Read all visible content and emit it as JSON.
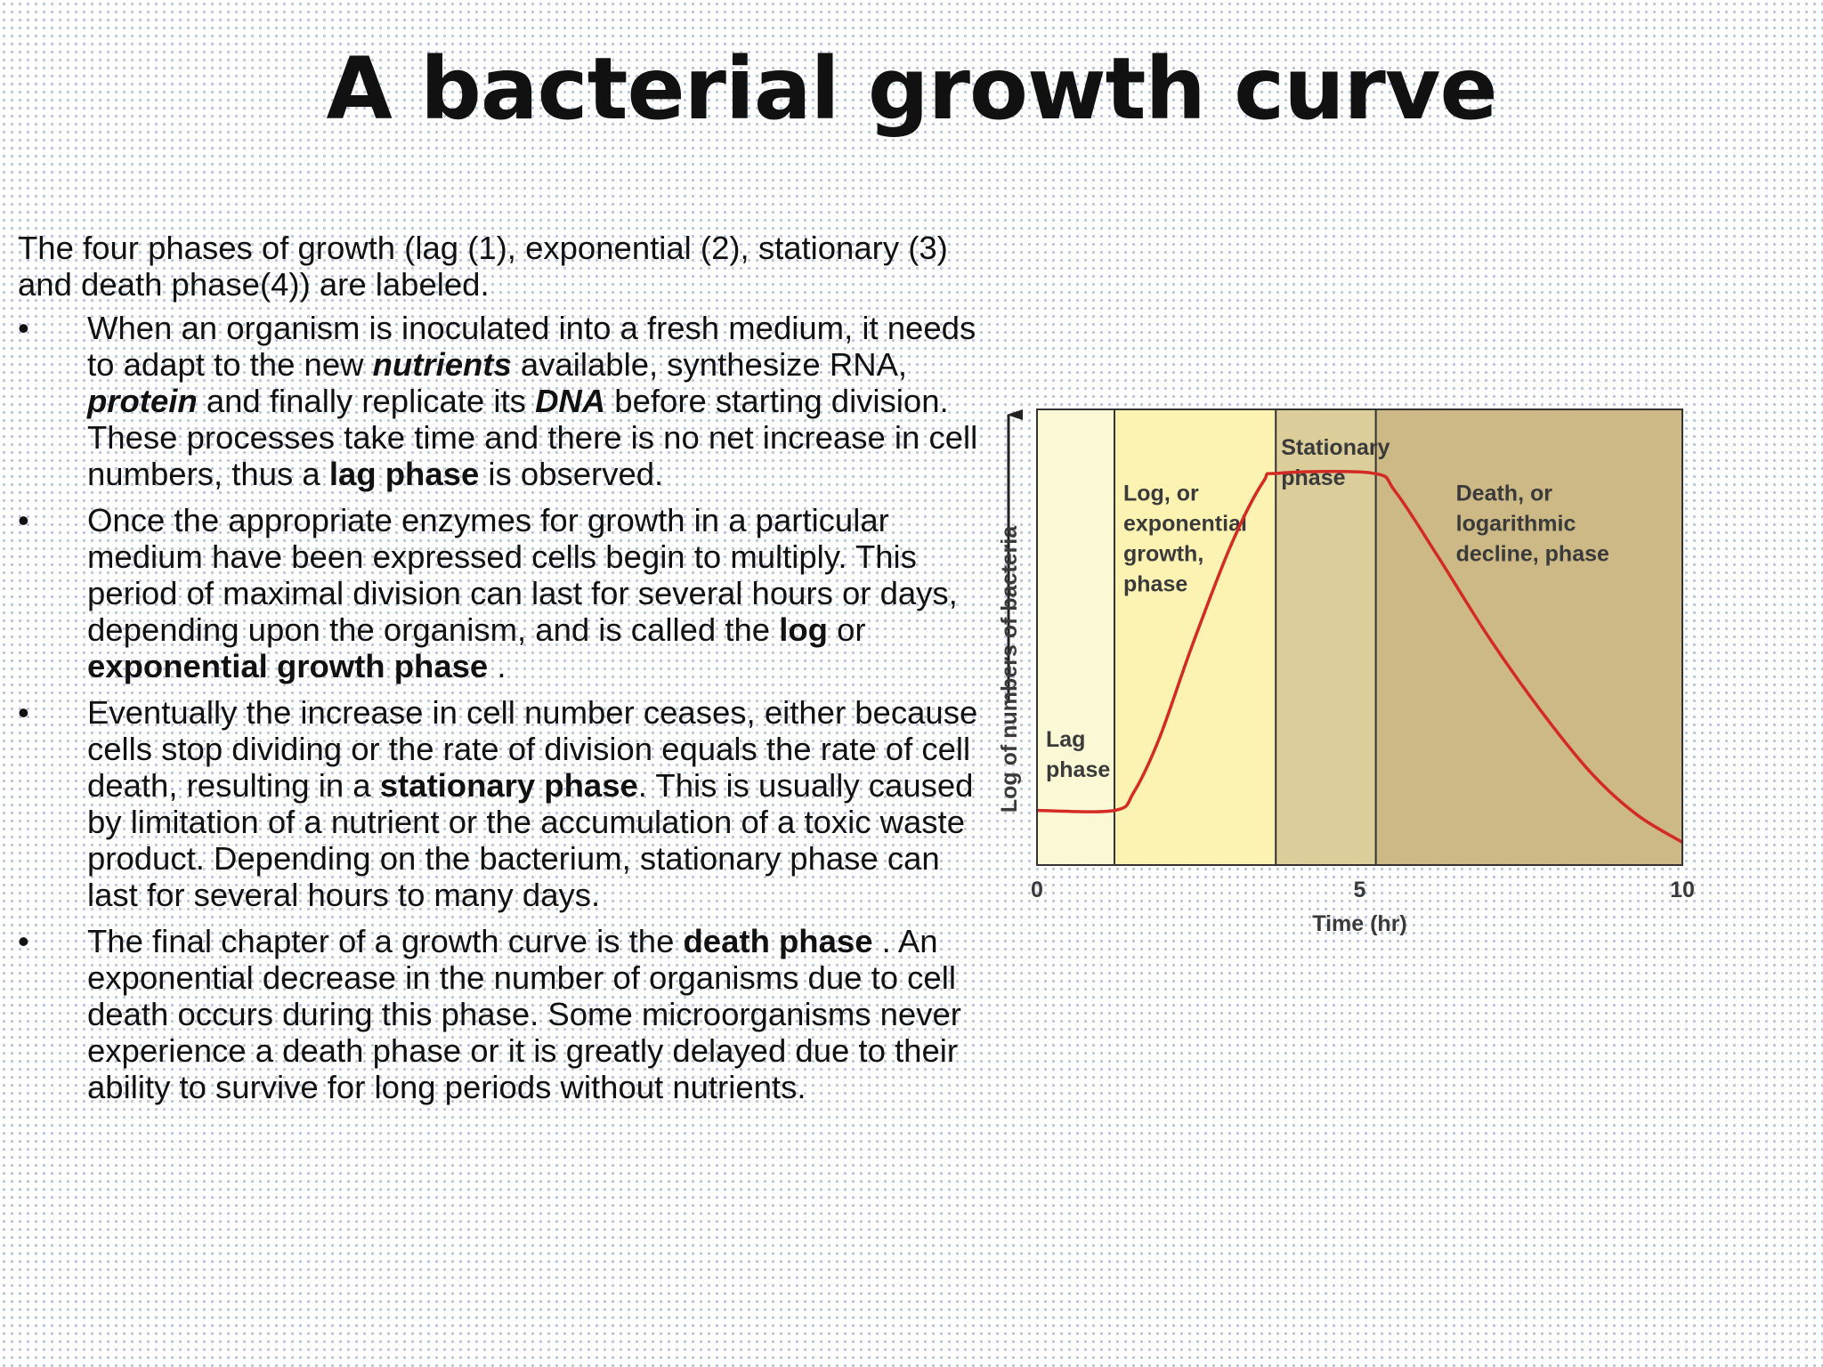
{
  "slide": {
    "title": "A bacterial growth curve",
    "intro": "The four phases of growth (lag (1), exponential (2), stationary (3) and death phase(4)) are labeled.",
    "bullet_glyph": "•",
    "bullets": [
      [
        {
          "t": "When an organism is inoculated into a fresh medium, it needs to adapt to the new "
        },
        {
          "t": "nutrients",
          "s": "bi"
        },
        {
          "t": " available, synthesize RNA, "
        },
        {
          "t": "protein",
          "s": "bi"
        },
        {
          "t": " and finally replicate its "
        },
        {
          "t": "DNA",
          "s": "bi"
        },
        {
          "t": " before starting division. These processes take time and there is no net increase in cell numbers, thus a "
        },
        {
          "t": "lag phase",
          "s": "b"
        },
        {
          "t": " is observed."
        }
      ],
      [
        {
          "t": "Once the appropriate enzymes for growth in a particular medium have been expressed cells begin to multiply. This period of maximal division can last for several hours or days, depending upon the organism, and is called the "
        },
        {
          "t": "log",
          "s": "b"
        },
        {
          "t": " or "
        },
        {
          "t": "exponential growth phase",
          "s": "b"
        },
        {
          "t": " ."
        }
      ],
      [
        {
          "t": "Eventually the increase in cell number ceases, either because cells stop dividing or the rate of division equals the rate of cell death, resulting in a "
        },
        {
          "t": "stationary phase",
          "s": "b"
        },
        {
          "t": ". This is usually caused by limitation of a nutrient or the accumulation of a toxic waste product. Depending on the bacterium, stationary phase can last for several hours to many days."
        }
      ],
      [
        {
          "t": "The final chapter of a growth curve is the "
        },
        {
          "t": "death phase",
          "s": "b"
        },
        {
          "t": " . An exponential decrease in the number of organisms due to cell death occurs during this phase. Some microorganisms never experience a death phase or it is greatly delayed due to their ability to survive for long periods without nutrients."
        }
      ]
    ]
  },
  "chart_data": {
    "type": "line",
    "title": "",
    "xlabel": "Time (hr)",
    "ylabel": "Log of numbers of bacteria",
    "xlim": [
      0,
      10
    ],
    "ylim": [
      0,
      1
    ],
    "x_ticks": [
      0,
      5,
      10
    ],
    "grid": false,
    "phases": [
      {
        "label": [
          "Lag",
          "phase"
        ],
        "x_start": 0,
        "x_end": 1.2,
        "color": "#fbf8d5"
      },
      {
        "label": [
          "Log, or",
          "exponential",
          "growth,",
          "phase"
        ],
        "x_start": 1.2,
        "x_end": 3.7,
        "color": "#fcf3b3"
      },
      {
        "label": [
          "Stationary",
          "phase"
        ],
        "x_start": 3.7,
        "x_end": 5.25,
        "color": "#dcce9a"
      },
      {
        "label": [
          "Death, or",
          "logarithmic",
          "decline, phase"
        ],
        "x_start": 5.25,
        "x_end": 10,
        "color": "#cdb985"
      }
    ],
    "series": [
      {
        "color": "#d42a24",
        "x": [
          0,
          1.2,
          1.5,
          1.9,
          2.4,
          3.0,
          3.5,
          3.75,
          5.2,
          5.55,
          6.2,
          7.0,
          7.8,
          8.6,
          9.3,
          10
        ],
        "y": [
          0.12,
          0.12,
          0.16,
          0.28,
          0.48,
          0.7,
          0.84,
          0.86,
          0.86,
          0.82,
          0.68,
          0.5,
          0.34,
          0.2,
          0.11,
          0.05
        ]
      }
    ]
  }
}
